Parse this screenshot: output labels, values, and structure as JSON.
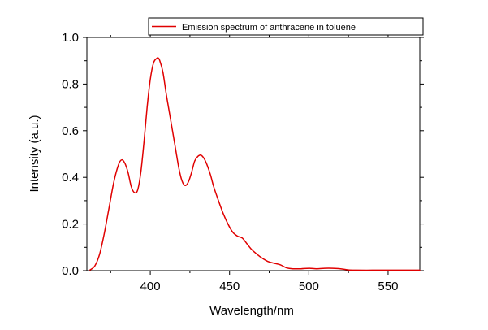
{
  "chart_data": {
    "type": "line",
    "title": "",
    "xlabel": "Wavelength/nm",
    "ylabel": "Intensity (a.u.)",
    "xlim": [
      360,
      570
    ],
    "ylim": [
      0,
      1.0
    ],
    "xticks": [
      400,
      450,
      500,
      550
    ],
    "yticks": [
      0.0,
      0.2,
      0.4,
      0.6,
      0.8,
      1.0
    ],
    "xtick_labels": [
      "400",
      "450",
      "500",
      "550"
    ],
    "ytick_labels": [
      "0.0",
      "0.2",
      "0.4",
      "0.6",
      "0.8",
      "1.0"
    ],
    "grid": false,
    "legend_position": "top-right",
    "series": [
      {
        "name": "Emission spectrum of anthracene in toluene",
        "color": "#e00000",
        "x": [
          362,
          365,
          368,
          371,
          374,
          377,
          380,
          382,
          384,
          386,
          388,
          390,
          392,
          394,
          396,
          398,
          400,
          402,
          404,
          405,
          406,
          408,
          410,
          412,
          414,
          416,
          418,
          420,
          422,
          424,
          426,
          428,
          430,
          432,
          434,
          436,
          438,
          440,
          443,
          446,
          449,
          452,
          455,
          458,
          461,
          464,
          467,
          470,
          474,
          478,
          482,
          486,
          490,
          495,
          500,
          505,
          510,
          515,
          520,
          525,
          530,
          540,
          550,
          560,
          570
        ],
        "y": [
          0.003,
          0.02,
          0.07,
          0.16,
          0.27,
          0.38,
          0.455,
          0.475,
          0.46,
          0.42,
          0.36,
          0.335,
          0.345,
          0.42,
          0.55,
          0.7,
          0.82,
          0.89,
          0.91,
          0.912,
          0.9,
          0.85,
          0.76,
          0.68,
          0.6,
          0.52,
          0.44,
          0.385,
          0.365,
          0.38,
          0.42,
          0.47,
          0.49,
          0.495,
          0.48,
          0.45,
          0.41,
          0.36,
          0.3,
          0.245,
          0.2,
          0.165,
          0.148,
          0.14,
          0.115,
          0.09,
          0.072,
          0.056,
          0.04,
          0.032,
          0.025,
          0.012,
          0.008,
          0.008,
          0.01,
          0.008,
          0.01,
          0.01,
          0.008,
          0.003,
          0.002,
          0.002,
          0.002,
          0.002,
          0.002
        ]
      }
    ]
  }
}
